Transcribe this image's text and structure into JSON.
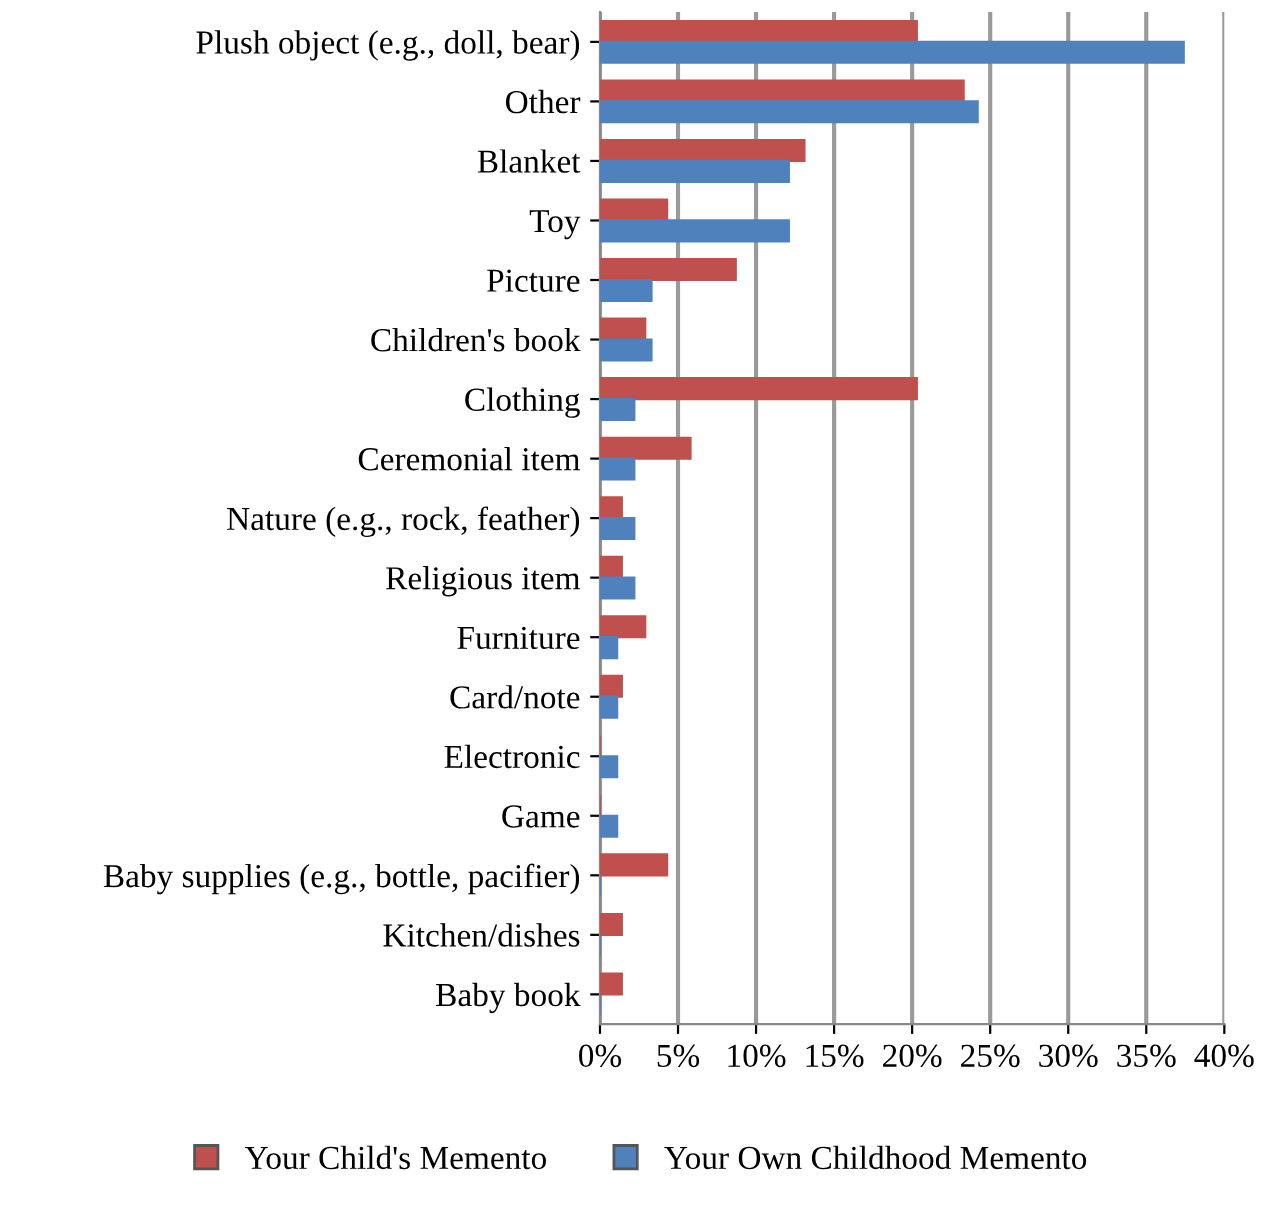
{
  "chart_data": {
    "type": "bar",
    "orientation": "horizontal",
    "categories": [
      "Plush object (e.g., doll, bear)",
      "Other",
      "Blanket",
      "Toy",
      "Picture",
      "Children's book",
      "Clothing",
      "Ceremonial item",
      "Nature (e.g., rock, feather)",
      "Religious item",
      "Furniture",
      "Card/note",
      "Electronic",
      "Game",
      "Baby supplies (e.g., bottle, pacifier)",
      "Kitchen/dishes",
      "Baby book"
    ],
    "series": [
      {
        "name": "Your Child's Memento",
        "color": "#c0504d",
        "values": [
          20.3,
          23.3,
          13.1,
          4.3,
          8.7,
          2.9,
          20.3,
          5.8,
          1.4,
          1.4,
          2.9,
          1.4,
          0,
          0,
          4.3,
          1.4,
          1.4
        ]
      },
      {
        "name": "Your Own Childhood Memento",
        "color": "#4f81bd",
        "values": [
          37.4,
          24.2,
          12.1,
          12.1,
          3.3,
          3.3,
          2.2,
          2.2,
          2.2,
          2.2,
          1.1,
          1.1,
          1.1,
          1.1,
          0,
          0,
          0
        ]
      }
    ],
    "xlim": [
      0,
      40
    ],
    "xticks": [
      {
        "value": 0,
        "label": "0%"
      },
      {
        "value": 5,
        "label": "5%"
      },
      {
        "value": 10,
        "label": "10%"
      },
      {
        "value": 15,
        "label": "15%"
      },
      {
        "value": 20,
        "label": "20%"
      },
      {
        "value": 25,
        "label": "25%"
      },
      {
        "value": 30,
        "label": "30%"
      },
      {
        "value": 35,
        "label": "35%"
      },
      {
        "value": 40,
        "label": "40%"
      }
    ],
    "grid": "x",
    "legend": "bottom"
  }
}
